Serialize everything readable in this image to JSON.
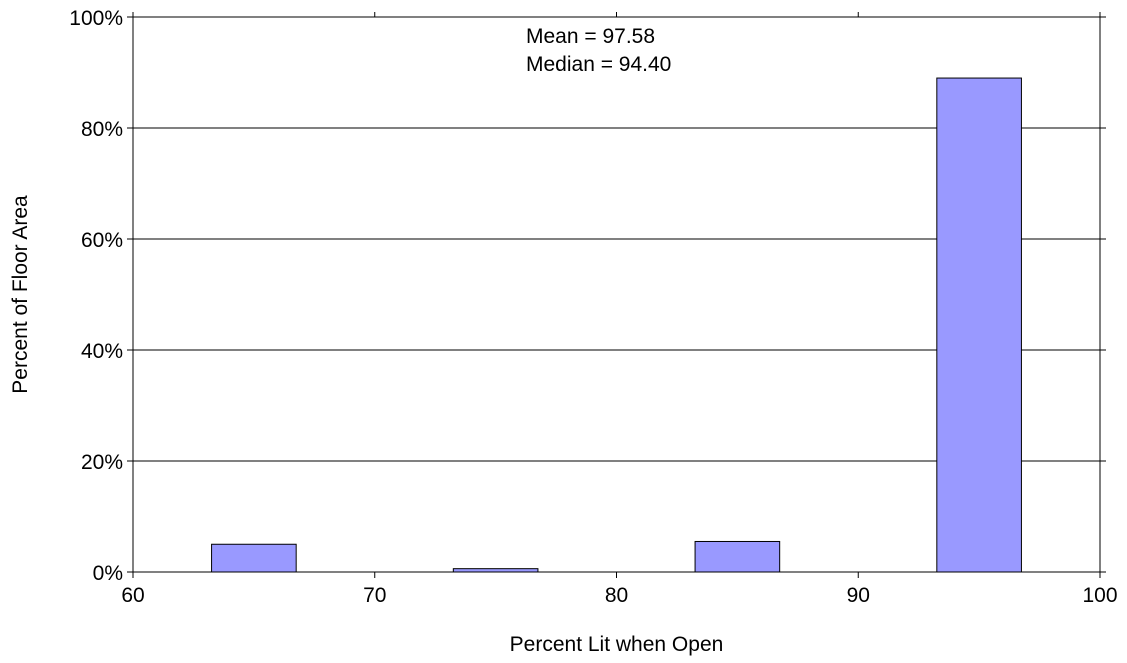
{
  "chart_data": {
    "type": "bar",
    "title": "",
    "xlabel": "Percent Lit when Open",
    "ylabel": "Percent of Floor Area",
    "xlim": [
      60,
      100
    ],
    "ylim": [
      0,
      100
    ],
    "x_ticks": [
      60,
      70,
      80,
      90,
      100
    ],
    "y_ticks": [
      0,
      20,
      40,
      60,
      80,
      100
    ],
    "y_tick_labels": [
      "0%",
      "20%",
      "40%",
      "60%",
      "80%",
      "100%"
    ],
    "bin_width": 3.5,
    "bins": [
      {
        "center": 65,
        "value": 5.0
      },
      {
        "center": 75,
        "value": 0.6
      },
      {
        "center": 85,
        "value": 5.5
      },
      {
        "center": 95,
        "value": 89.0
      }
    ],
    "annotations": [
      "Mean = 97.58",
      "Median = 94.40"
    ],
    "grid": "horizontal",
    "legend": "none",
    "colors": {
      "bar_fill": "#9999ff",
      "bar_stroke": "#000000",
      "grid": "#000000"
    }
  }
}
